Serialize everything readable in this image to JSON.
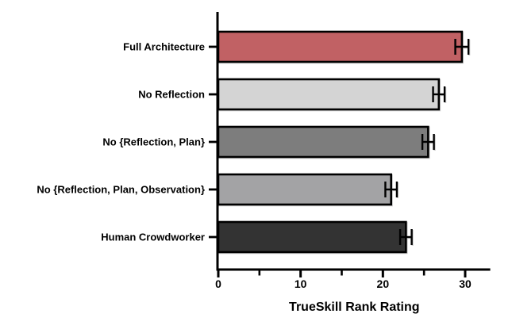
{
  "chart_data": {
    "type": "bar",
    "orientation": "horizontal",
    "title": "",
    "xlabel": "TrueSkill Rank Rating",
    "ylabel": "",
    "categories": [
      "Full Architecture",
      "No Reflection",
      "No {Reflection, Plan}",
      "No {Reflection, Plan, Observation}",
      "Human Crowdworker"
    ],
    "values": [
      29.6,
      26.8,
      25.5,
      21.0,
      22.8
    ],
    "errors": [
      0.8,
      0.7,
      0.7,
      0.7,
      0.7
    ],
    "bar_colors": [
      "#c16164",
      "#d4d4d4",
      "#7d7d7d",
      "#a3a3a5",
      "#333333"
    ],
    "bar_outline_color": "#000000",
    "axis_color": "#000000",
    "background_color": "#ffffff",
    "xlim": [
      0,
      33
    ],
    "x_major_ticks": [
      0,
      10,
      20,
      30
    ],
    "x_minor_ticks": [
      5,
      15,
      25
    ],
    "grid": "off",
    "legend": "none",
    "error_bar_style": "caps-both-ends"
  }
}
